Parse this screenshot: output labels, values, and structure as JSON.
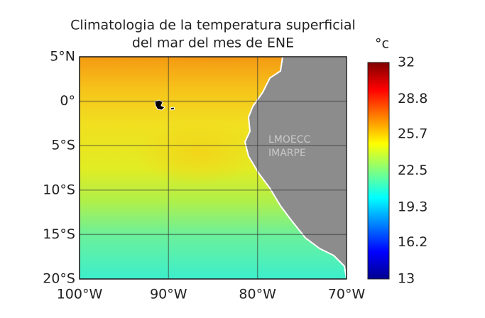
{
  "title": [
    "Climatologia de la temperatura superficial",
    "del mar del mes de ENE"
  ],
  "map": {
    "xlim": [
      -100,
      -70
    ],
    "ylim": [
      -20,
      5
    ],
    "xticks": [
      {
        "value": -100,
        "label": "100°W"
      },
      {
        "value": -90,
        "label": "90°W"
      },
      {
        "value": -80,
        "label": "80°W"
      },
      {
        "value": -70,
        "label": "70°W"
      }
    ],
    "yticks": [
      {
        "value": 5,
        "label": "5°N"
      },
      {
        "value": 0,
        "label": "0°"
      },
      {
        "value": -5,
        "label": "5°S"
      },
      {
        "value": -10,
        "label": "10°S"
      },
      {
        "value": -15,
        "label": "15°S"
      },
      {
        "value": -20,
        "label": "20°S"
      }
    ],
    "grid": true,
    "watermark": [
      "LMOECC",
      "IMARPE"
    ]
  },
  "colorbar": {
    "label": "°c",
    "clim": [
      13,
      32
    ],
    "ticks": [
      13,
      16.2,
      19.3,
      22.5,
      25.7,
      28.8,
      32
    ]
  }
}
